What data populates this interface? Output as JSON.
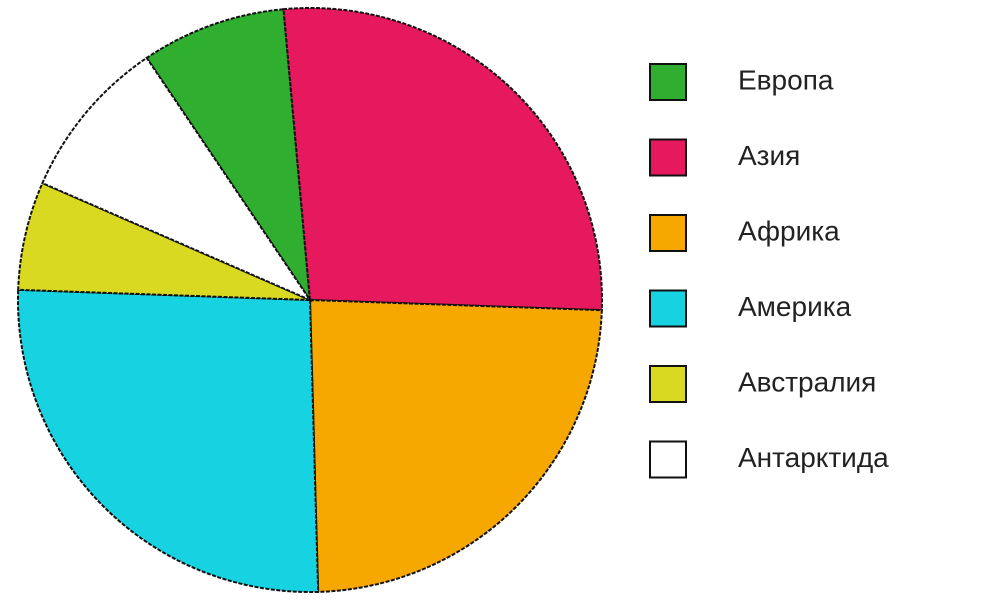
{
  "chart_data": {
    "type": "pie",
    "categories": [
      "Европа",
      "Азия",
      "Африка",
      "Америка",
      "Австралия",
      "Антарктида"
    ],
    "values": [
      8,
      27,
      24,
      26,
      6,
      9
    ],
    "colors": [
      "#2fae2f",
      "#e6185e",
      "#f6a800",
      "#17d3e2",
      "#d9d921",
      "#ffffff"
    ],
    "legend": "right"
  }
}
